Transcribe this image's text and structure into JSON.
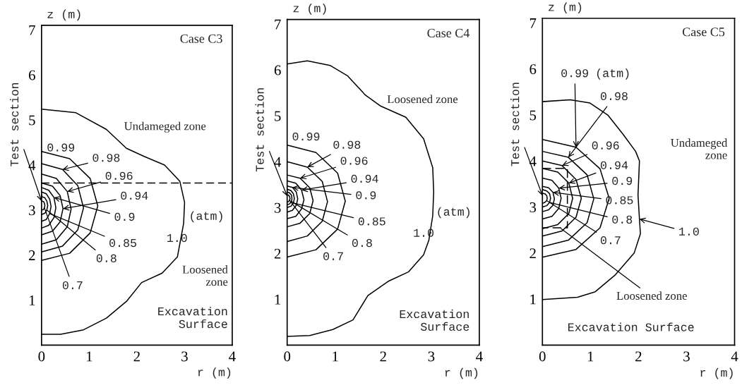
{
  "chart_data": [
    {
      "type": "line",
      "title": "Case C3",
      "xlabel": "r (m)",
      "ylabel": "z (m)",
      "xlim": [
        0,
        4
      ],
      "ylim": [
        0,
        7.1
      ],
      "xticks": [
        0,
        1,
        2,
        3,
        4
      ],
      "yticks": [
        1,
        2,
        3,
        4,
        5,
        6,
        7
      ],
      "ref_lines": [
        {
          "axis": "y",
          "value": 3.6,
          "line_style": "dashed",
          "color": "#000000"
        }
      ],
      "series": [
        {
          "color": "#000000",
          "x": [
            0,
            0.72,
            1.36,
            1.78,
            2.15,
            2.58,
            2.9,
            3.0,
            2.98,
            2.85,
            2.53,
            2.1,
            1.78,
            1.36,
            0.88,
            0.4,
            0
          ],
          "values": [
            5.24,
            5.16,
            4.79,
            4.37,
            4.19,
            4.0,
            3.64,
            3.17,
            2.7,
            1.96,
            1.6,
            1.39,
            0.97,
            0.6,
            0.34,
            0.24,
            0.24
          ]
        },
        {
          "color": "#000000",
          "x": [
            0,
            0.59,
            1.02,
            1.18,
            1.02,
            0.59,
            0
          ],
          "values": [
            4.3,
            4.14,
            3.7,
            3.09,
            2.49,
            2.04,
            1.88
          ]
        },
        {
          "color": "#000000",
          "x": [
            0,
            0.44,
            0.76,
            0.88,
            0.76,
            0.44,
            0
          ],
          "values": [
            4.03,
            3.9,
            3.54,
            3.05,
            2.56,
            2.2,
            2.07
          ]
        },
        {
          "color": "#000000",
          "x": [
            0,
            0.31,
            0.54,
            0.62,
            0.54,
            0.31,
            0
          ],
          "values": [
            3.8,
            3.7,
            3.41,
            3.02,
            2.63,
            2.34,
            2.24
          ]
        },
        {
          "color": "#000000",
          "x": [
            0,
            0.23,
            0.39,
            0.45,
            0.39,
            0.23,
            0
          ],
          "values": [
            3.6,
            3.53,
            3.32,
            3.03,
            2.74,
            2.53,
            2.45
          ]
        },
        {
          "color": "#000000",
          "x": [
            0,
            0.15,
            0.26,
            0.3,
            0.26,
            0.15,
            0
          ],
          "values": [
            3.5,
            3.44,
            3.28,
            3.05,
            2.83,
            2.66,
            2.6
          ]
        },
        {
          "color": "#000000",
          "x": [
            0,
            0.1,
            0.17,
            0.2,
            0.17,
            0.1,
            0
          ],
          "values": [
            3.4,
            3.36,
            3.24,
            3.08,
            2.92,
            2.79,
            2.75
          ]
        },
        {
          "color": "#000000",
          "x": [
            0,
            0.07,
            0.11,
            0.13,
            0.11,
            0.07,
            0
          ],
          "values": [
            3.3,
            3.27,
            3.2,
            3.1,
            3.0,
            2.93,
            2.9
          ]
        },
        {
          "color": "#000000",
          "x": [
            0,
            0.04,
            0.06,
            0.07,
            0.06,
            0.04,
            0
          ],
          "values": [
            3.2,
            3.19,
            3.15,
            3.1,
            3.05,
            3.01,
            3.0
          ]
        }
      ],
      "annotations": [
        "Undameged zone",
        "Loosened\nzone",
        "Excavation\nSurface",
        "(atm)",
        {
          "text": "Test section",
          "x": 0,
          "y": 3.2
        },
        {
          "text": "0.99",
          "x": 0,
          "y": 4.3
        },
        {
          "text": "0.98",
          "x": 0.44,
          "y": 3.9
        },
        {
          "text": "0.96",
          "x": 0.54,
          "y": 3.41
        },
        {
          "text": "0.94",
          "x": 0.45,
          "y": 3.03
        },
        {
          "text": "0.9",
          "x": 0.26,
          "y": 3.28
        },
        {
          "text": "0.85",
          "x": 0.17,
          "y": 2.92
        },
        {
          "text": "0.8",
          "x": 0.11,
          "y": 3.0
        },
        {
          "text": "0.7",
          "x": 0.06,
          "y": 3.05
        },
        {
          "text": "1.0",
          "x": 2.98,
          "y": 2.7
        }
      ]
    },
    {
      "type": "line",
      "title": "Case C4",
      "xlabel": "r (m)",
      "ylabel": "z (m)",
      "xlim": [
        0,
        4
      ],
      "ylim": [
        0,
        7.1
      ],
      "xticks": [
        0,
        1,
        2,
        3,
        4
      ],
      "yticks": [
        1,
        2,
        3,
        4,
        5,
        6,
        7
      ],
      "series": [
        {
          "color": "#000000",
          "x": [
            0,
            0.42,
            0.89,
            1.26,
            1.63,
            1.95,
            2.47,
            2.84,
            3.03,
            3.05,
            3.03,
            2.95,
            2.84,
            2.53,
            2.1,
            1.68,
            1.37,
            0.95,
            0.47,
            0
          ],
          "values": [
            6.13,
            6.2,
            6.1,
            5.87,
            5.45,
            5.21,
            4.97,
            4.5,
            3.87,
            3.34,
            2.82,
            2.29,
            1.97,
            1.6,
            1.39,
            1.08,
            0.55,
            0.34,
            0.21,
            0.19
          ]
        },
        {
          "color": "#000000",
          "x": [
            0,
            0.6,
            1.05,
            1.21,
            1.05,
            0.6,
            0
          ],
          "values": [
            4.36,
            4.2,
            3.75,
            3.14,
            2.53,
            2.08,
            1.92
          ]
        },
        {
          "color": "#000000",
          "x": [
            0,
            0.42,
            0.73,
            0.84,
            0.73,
            0.42,
            0
          ],
          "values": [
            4.0,
            3.88,
            3.57,
            3.13,
            2.7,
            2.38,
            2.26
          ]
        },
        {
          "color": "#000000",
          "x": [
            0,
            0.27,
            0.47,
            0.54,
            0.47,
            0.27,
            0
          ],
          "values": [
            3.71,
            3.64,
            3.43,
            3.15,
            2.87,
            2.66,
            2.58
          ]
        },
        {
          "color": "#000000",
          "x": [
            0,
            0.18,
            0.3,
            0.35,
            0.3,
            0.18,
            0
          ],
          "values": [
            3.58,
            3.53,
            3.38,
            3.17,
            2.97,
            2.81,
            2.76
          ]
        },
        {
          "color": "#000000",
          "x": [
            0,
            0.11,
            0.19,
            0.22,
            0.19,
            0.11,
            0
          ],
          "values": [
            3.47,
            3.44,
            3.34,
            3.19,
            3.05,
            2.94,
            2.9
          ]
        },
        {
          "color": "#000000",
          "x": [
            0,
            0.08,
            0.13,
            0.15,
            0.13,
            0.08,
            0
          ],
          "values": [
            3.4,
            3.37,
            3.3,
            3.2,
            3.1,
            3.03,
            3.0
          ]
        },
        {
          "color": "#000000",
          "x": [
            0,
            0.05,
            0.09,
            0.1,
            0.09,
            0.05,
            0
          ],
          "values": [
            3.34,
            3.32,
            3.27,
            3.2,
            3.13,
            3.08,
            3.06
          ]
        },
        {
          "color": "#000000",
          "x": [
            0,
            0.03,
            0.05,
            0.06,
            0.05,
            0.03,
            0
          ],
          "values": [
            3.28,
            3.27,
            3.24,
            3.2,
            3.16,
            3.13,
            3.12
          ]
        }
      ],
      "annotations": [
        "Loosened zone",
        "Excavation\nSurface",
        "(atm)",
        {
          "text": "Test section",
          "x": 0,
          "y": 3.25
        },
        {
          "text": "0.99",
          "x": 0.05,
          "y": 4.36
        },
        {
          "text": "0.98",
          "x": 0.42,
          "y": 3.88
        },
        {
          "text": "0.96",
          "x": 0.27,
          "y": 3.64
        },
        {
          "text": "0.94",
          "x": 0.3,
          "y": 3.38
        },
        {
          "text": "0.9",
          "x": 0.11,
          "y": 3.44
        },
        {
          "text": "0.85",
          "x": 0.13,
          "y": 3.1
        },
        {
          "text": "0.8",
          "x": 0.09,
          "y": 3.13
        },
        {
          "text": "0.7",
          "x": 0.05,
          "y": 3.16
        },
        {
          "text": "1.0",
          "x": 3.03,
          "y": 2.82
        }
      ]
    },
    {
      "type": "line",
      "title": "Case C5",
      "xlabel": "r (m)",
      "ylabel": "z (m)",
      "xlim": [
        0,
        4
      ],
      "ylim": [
        0,
        7.1
      ],
      "xticks": [
        0,
        1,
        2,
        3,
        4
      ],
      "yticks": [
        1,
        2,
        3,
        4,
        5,
        6,
        7
      ],
      "series": [
        {
          "color": "#000000",
          "x": [
            0,
            0.58,
            0.99,
            1.36,
            1.68,
            1.94,
            2.02,
            1.99,
            2.02,
            2.04,
            1.91,
            1.52,
            1.1,
            0.73,
            0
          ],
          "values": [
            5.29,
            5.33,
            5.26,
            5.0,
            4.58,
            4.21,
            4.0,
            3.26,
            2.74,
            2.42,
            2.0,
            1.53,
            1.16,
            1.04,
            0.99
          ]
        },
        {
          "color": "#000000",
          "x": [
            0,
            0.7,
            1.2,
            1.39,
            1.2,
            0.7,
            0
          ],
          "values": [
            4.47,
            4.3,
            3.83,
            3.19,
            2.55,
            2.08,
            1.91
          ]
        },
        {
          "color": "#000000",
          "x": [
            0,
            0.54,
            0.93,
            1.07,
            0.93,
            0.54,
            0
          ],
          "values": [
            4.21,
            4.08,
            3.7,
            3.18,
            2.66,
            2.28,
            2.14
          ]
        },
        {
          "color": "#000000",
          "x": [
            0,
            0.41,
            0.7,
            0.81,
            0.7,
            0.41,
            0
          ],
          "values": [
            4.0,
            3.9,
            3.6,
            3.19,
            2.78,
            2.48,
            2.37
          ]
        },
        {
          "color": "#000000",
          "x": [
            0,
            0.32,
            0.55,
            0.63,
            0.55,
            0.32,
            0
          ],
          "values": [
            3.84,
            3.76,
            3.52,
            3.19,
            2.86,
            2.62,
            2.53
          ]
        },
        {
          "color": "#000000",
          "x": [
            0,
            0.2,
            0.34,
            0.39,
            0.34,
            0.2,
            0
          ],
          "values": [
            3.63,
            3.58,
            3.41,
            3.19,
            2.97,
            2.8,
            2.74
          ]
        },
        {
          "color": "#000000",
          "x": [
            0,
            0.13,
            0.22,
            0.25,
            0.22,
            0.13,
            0
          ],
          "values": [
            3.45,
            3.42,
            3.32,
            3.18,
            3.04,
            2.94,
            2.9
          ]
        },
        {
          "color": "#000000",
          "x": [
            0,
            0.09,
            0.15,
            0.17,
            0.15,
            0.09,
            0
          ],
          "values": [
            3.38,
            3.35,
            3.29,
            3.19,
            3.1,
            3.03,
            3.0
          ]
        },
        {
          "color": "#000000",
          "x": [
            0,
            0.05,
            0.09,
            0.1,
            0.09,
            0.05,
            0
          ],
          "values": [
            3.3,
            3.29,
            3.25,
            3.19,
            3.14,
            3.1,
            3.08
          ]
        },
        {
          "color": "#000000",
          "line_style": "dashed",
          "x": [
            0,
            0.52,
            0.52,
            0
          ],
          "values": [
            3.84,
            3.84,
            2.55,
            2.55
          ]
        }
      ],
      "annotations": [
        "Undameged\nzone",
        "Excavation Surface",
        "(atm)",
        {
          "text": "Test section",
          "x": 0,
          "y": 3.25
        },
        {
          "text": "Loosened zone",
          "x": 0.39,
          "y": 2.53
        },
        {
          "text": "0.99",
          "x": 0.7,
          "y": 4.3
        },
        {
          "text": "0.98",
          "x": 0.54,
          "y": 4.08
        },
        {
          "text": "0.96",
          "x": 0.41,
          "y": 3.9
        },
        {
          "text": "0.94",
          "x": 0.55,
          "y": 3.52
        },
        {
          "text": "0.9",
          "x": 0.34,
          "y": 3.41
        },
        {
          "text": "0.85",
          "x": 0.22,
          "y": 3.32
        },
        {
          "text": "0.8",
          "x": 0.15,
          "y": 3.1
        },
        {
          "text": "0.7",
          "x": 0.09,
          "y": 3.14
        },
        {
          "text": "1.0",
          "x": 2.02,
          "y": 2.74
        }
      ]
    }
  ]
}
